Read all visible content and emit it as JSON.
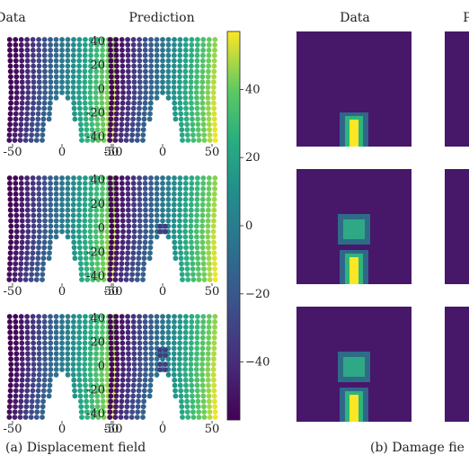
{
  "headers": {
    "left_data": "Data",
    "left_pred": "Prediction",
    "right_data": "Data",
    "right_pred": "P"
  },
  "captions": {
    "a": "(a) Displacement field",
    "b": "(b) Damage fie"
  },
  "chart_data": {
    "type": "scatter",
    "title": "",
    "colormap": "viridis",
    "panels": [
      {
        "name": "row1-data",
        "crack_len": 0.45,
        "damage_blobs": 0
      },
      {
        "name": "row1-prediction",
        "crack_len": 0.45,
        "damage_blobs": 0
      },
      {
        "name": "row2-data",
        "crack_len": 0.45,
        "damage_blobs": 0
      },
      {
        "name": "row2-prediction",
        "crack_len": 0.45,
        "damage_blobs": 1
      },
      {
        "name": "row3-data",
        "crack_len": 0.45,
        "damage_blobs": 0
      },
      {
        "name": "row3-prediction",
        "crack_len": 0.45,
        "damage_blobs": 2
      }
    ],
    "x_ticks": [
      "-50",
      "0",
      "50"
    ],
    "y_ticks": [
      "40",
      "20",
      "0",
      "-20",
      "-40"
    ],
    "colorbar": {
      "min": -57,
      "max": 57,
      "ticks": [
        "40",
        "20",
        "0",
        "-20",
        "-40"
      ]
    },
    "damage_rows": [
      "row1",
      "row2",
      "row3"
    ]
  }
}
